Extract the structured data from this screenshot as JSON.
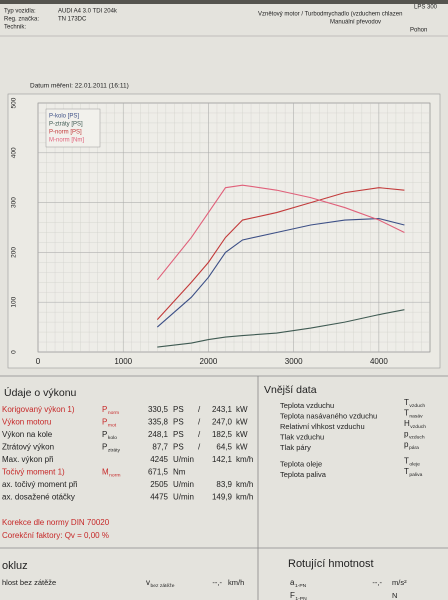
{
  "header": {
    "vehicle_type_label": "Typ vozidla:",
    "vehicle_type": "AUDI A4 3.0 TDI 204k",
    "reg_label": "Reg. značka:",
    "reg": "TN 173DC",
    "technician_label": "Technik:",
    "engine": "Vznětový motor / Turbodmychadlo (vzduchem chlazen",
    "gearbox": "Manuální převodov",
    "drive": "Pohon",
    "device": "LPS 300"
  },
  "date": "Datum měření: 22.01.2011 (16:11)",
  "chart": {
    "type": "line",
    "x": [
      1400,
      1800,
      2000,
      2200,
      2400,
      2800,
      3200,
      3600,
      4000,
      4300
    ],
    "xlim": [
      0,
      4600
    ],
    "xticks": [
      0,
      1000,
      2000,
      3000,
      4000
    ],
    "ylim": [
      0,
      500
    ],
    "yticks": [
      0,
      100,
      200,
      300,
      400,
      500
    ],
    "y2lim": [
      0,
      1000
    ],
    "grid": true,
    "legend": "upper left",
    "series": [
      {
        "name": "P-kolo [PS]",
        "color": "#3c4f86",
        "values": [
          50,
          110,
          150,
          200,
          225,
          240,
          255,
          265,
          268,
          255
        ]
      },
      {
        "name": "P-ztráty [PS]",
        "color": "#3f5a52",
        "values": [
          10,
          18,
          25,
          30,
          33,
          38,
          48,
          60,
          75,
          85
        ]
      },
      {
        "name": "P-norm [PS]",
        "color": "#c23a3a",
        "values": [
          65,
          140,
          180,
          230,
          265,
          280,
          300,
          320,
          330,
          325
        ]
      },
      {
        "name": "M-norm [Nm]",
        "color": "#e0607a",
        "axis": "y2",
        "values": [
          290,
          460,
          560,
          660,
          670,
          650,
          620,
          580,
          530,
          480
        ]
      }
    ]
  },
  "performance": {
    "title": "Údaje o výkonu",
    "rows": [
      {
        "label": "Korigovaný výkon 1)",
        "color": "#c62828",
        "sym": "P",
        "sub": "norm",
        "val": "330,5",
        "unit": "PS",
        "sep": "/",
        "val2": "243,1",
        "unit2": "kW"
      },
      {
        "label": "Výkon motoru",
        "color": "#c62828",
        "sym": "P",
        "sub": "mot",
        "val": "335,8",
        "unit": "PS",
        "sep": "/",
        "val2": "247,0",
        "unit2": "kW"
      },
      {
        "label": "Výkon na kole",
        "sym": "P",
        "sub": "kolo",
        "val": "248,1",
        "unit": "PS",
        "sep": "/",
        "val2": "182,5",
        "unit2": "kW"
      },
      {
        "label": "Ztrátový výkon",
        "sym": "P",
        "sub": "ztráty",
        "val": "87,7",
        "unit": "PS",
        "sep": "/",
        "val2": "64,5",
        "unit2": "kW"
      },
      {
        "label": "Max. výkon při",
        "val": "4245",
        "unit": "U/min",
        "val2": "142,1",
        "unit2": "km/h"
      },
      {
        "label": "Točivý moment 1)",
        "color": "#c62828",
        "sym": "M",
        "sub": "norm",
        "val": "671,5",
        "unit": "Nm"
      },
      {
        "label": "ax. točivý moment při",
        "val": "2505",
        "unit": "U/min",
        "val2": "83,9",
        "unit2": "km/h"
      },
      {
        "label": "ax. dosažené otáčky",
        "val": "4475",
        "unit": "U/min",
        "val2": "149,9",
        "unit2": "km/h"
      }
    ],
    "notes": [
      "Korekce dle normy DIN 70020",
      "Corekční faktory: Qv = 0,00 %"
    ]
  },
  "external": {
    "title": "Vnější data",
    "rows": [
      {
        "label": "Teplota vzduchu",
        "sym": "T",
        "sub": "vzduch"
      },
      {
        "label": "Teplota nasávaného vzduchu",
        "sym": "T",
        "sub": "nasáv"
      },
      {
        "label": "Relativní vlhkost vzduchu",
        "sym": "H",
        "sub": "vzduch"
      },
      {
        "label": "Tlak vzduchu",
        "sym": "p",
        "sub": "vzduch"
      },
      {
        "label": "Tlak páry",
        "sym": "p",
        "sub": "pára"
      },
      {
        "label": "Teplota oleje",
        "sym": "T",
        "sub": "oleje"
      },
      {
        "label": "Teplota paliva",
        "sym": "T",
        "sub": "paliva"
      }
    ]
  },
  "rolling": {
    "title": "okluz",
    "rows": [
      {
        "label": "hlost bez zátěže",
        "sym": "v",
        "sub": "bez zátěže",
        "val": "--,-",
        "unit": "km/h"
      }
    ]
  },
  "rotating": {
    "title": "Rotující hmotnost",
    "rows": [
      {
        "sym": "a",
        "sub": "1-PN",
        "val": "--,-",
        "unit": "m/s²"
      },
      {
        "sym": "F",
        "sub": "1-PN",
        "unit": "N"
      }
    ]
  }
}
